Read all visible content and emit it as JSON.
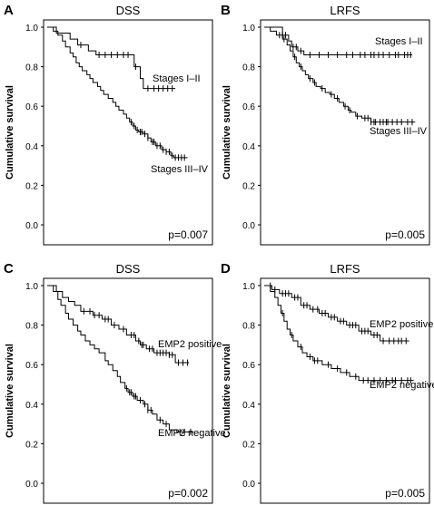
{
  "chart_data": [
    {
      "panel_letter": "A",
      "type": "line",
      "title": "DSS",
      "ylabel": "Cumulative survival",
      "y_ticks": [
        "0.0",
        "0.2",
        "0.4",
        "0.6",
        "0.8",
        "1.0"
      ],
      "ylim": [
        0,
        1
      ],
      "xlim": [
        0,
        100
      ],
      "p_value": "p=0.007",
      "grid": false,
      "series": [
        {
          "name": "Stages I–II",
          "steps": [
            [
              0,
              1.0
            ],
            [
              6,
              0.97
            ],
            [
              15,
              0.94
            ],
            [
              20,
              0.91
            ],
            [
              27,
              0.88
            ],
            [
              32,
              0.86
            ],
            [
              40,
              0.86
            ],
            [
              54,
              0.86
            ],
            [
              57,
              0.8
            ],
            [
              61,
              0.74
            ],
            [
              63,
              0.69
            ],
            [
              84,
              0.69
            ]
          ],
          "censor_x": [
            22,
            34,
            38,
            42,
            46,
            50,
            53,
            58,
            66,
            70,
            73,
            76,
            79,
            82
          ]
        },
        {
          "name": "Stages III–IV",
          "steps": [
            [
              0,
              1.0
            ],
            [
              4,
              0.98
            ],
            [
              7,
              0.96
            ],
            [
              10,
              0.93
            ],
            [
              12,
              0.9
            ],
            [
              15,
              0.87
            ],
            [
              17,
              0.85
            ],
            [
              19,
              0.82
            ],
            [
              21,
              0.8
            ],
            [
              23,
              0.78
            ],
            [
              26,
              0.76
            ],
            [
              28,
              0.74
            ],
            [
              30,
              0.72
            ],
            [
              33,
              0.7
            ],
            [
              35,
              0.68
            ],
            [
              37,
              0.66
            ],
            [
              40,
              0.64
            ],
            [
              43,
              0.62
            ],
            [
              45,
              0.6
            ],
            [
              47,
              0.58
            ],
            [
              50,
              0.56
            ],
            [
              52,
              0.54
            ],
            [
              54,
              0.52
            ],
            [
              56,
              0.5
            ],
            [
              58,
              0.48
            ],
            [
              60,
              0.47
            ],
            [
              63,
              0.46
            ],
            [
              66,
              0.44
            ],
            [
              68,
              0.42
            ],
            [
              71,
              0.4
            ],
            [
              75,
              0.38
            ],
            [
              78,
              0.37
            ],
            [
              81,
              0.35
            ],
            [
              83,
              0.34
            ],
            [
              92,
              0.34
            ]
          ],
          "censor_x": [
            55,
            57,
            59,
            61,
            62,
            64,
            66,
            69,
            70,
            72,
            74,
            76,
            78,
            80,
            82,
            84,
            86,
            88,
            90
          ]
        }
      ],
      "annotations": [
        "Stages I–II",
        "Stages III–IV"
      ]
    },
    {
      "panel_letter": "B",
      "type": "line",
      "title": "LRFS",
      "ylabel": "Cumulative survival",
      "y_ticks": [
        "0.0",
        "0.2",
        "0.4",
        "0.6",
        "0.8",
        "1.0"
      ],
      "ylim": [
        0,
        1
      ],
      "xlim": [
        0,
        100
      ],
      "p_value": "p=0.005",
      "grid": false,
      "series": [
        {
          "name": "Stages I–II",
          "steps": [
            [
              0,
              1.0
            ],
            [
              12,
              0.96
            ],
            [
              16,
              0.93
            ],
            [
              18,
              0.9
            ],
            [
              22,
              0.88
            ],
            [
              26,
              0.86
            ],
            [
              97,
              0.86
            ]
          ],
          "censor_x": [
            12,
            14,
            19,
            21,
            24,
            30,
            36,
            42,
            48,
            54,
            58,
            63,
            66,
            70,
            72,
            75,
            78,
            82,
            86,
            88,
            92,
            94,
            96
          ]
        },
        {
          "name": "Stages III–IV",
          "steps": [
            [
              0,
              1.0
            ],
            [
              4,
              0.98
            ],
            [
              8,
              0.96
            ],
            [
              12,
              0.94
            ],
            [
              15,
              0.91
            ],
            [
              17,
              0.88
            ],
            [
              19,
              0.85
            ],
            [
              21,
              0.82
            ],
            [
              23,
              0.8
            ],
            [
              25,
              0.78
            ],
            [
              27,
              0.76
            ],
            [
              29,
              0.74
            ],
            [
              32,
              0.72
            ],
            [
              34,
              0.7
            ],
            [
              37,
              0.69
            ],
            [
              40,
              0.67
            ],
            [
              43,
              0.66
            ],
            [
              46,
              0.64
            ],
            [
              49,
              0.62
            ],
            [
              52,
              0.6
            ],
            [
              55,
              0.58
            ],
            [
              57,
              0.57
            ],
            [
              60,
              0.55
            ],
            [
              64,
              0.54
            ],
            [
              70,
              0.52
            ],
            [
              99,
              0.52
            ]
          ],
          "censor_x": [
            10,
            13,
            20,
            24,
            30,
            33,
            38,
            44,
            48,
            53,
            56,
            61,
            66,
            68,
            70,
            72,
            73,
            76,
            78,
            80,
            81,
            84,
            87,
            90,
            94,
            97
          ]
        }
      ],
      "annotations": [
        "Stages I–II",
        "Stages III–IV"
      ]
    },
    {
      "panel_letter": "C",
      "type": "line",
      "title": "DSS",
      "ylabel": "Cumulative survival",
      "y_ticks": [
        "0.0",
        "0.2",
        "0.4",
        "0.6",
        "0.8",
        "1.0"
      ],
      "ylim": [
        0,
        1
      ],
      "xlim": [
        0,
        100
      ],
      "p_value": "p=0.002",
      "grid": false,
      "series": [
        {
          "name": "EMP2 positive",
          "steps": [
            [
              0,
              1.0
            ],
            [
              6,
              0.97
            ],
            [
              10,
              0.94
            ],
            [
              14,
              0.92
            ],
            [
              18,
              0.9
            ],
            [
              22,
              0.87
            ],
            [
              30,
              0.85
            ],
            [
              36,
              0.83
            ],
            [
              42,
              0.8
            ],
            [
              47,
              0.78
            ],
            [
              52,
              0.75
            ],
            [
              58,
              0.72
            ],
            [
              61,
              0.7
            ],
            [
              65,
              0.68
            ],
            [
              70,
              0.66
            ],
            [
              80,
              0.65
            ],
            [
              84,
              0.61
            ],
            [
              93,
              0.61
            ]
          ],
          "censor_x": [
            24,
            28,
            31,
            34,
            38,
            40,
            44,
            50,
            55,
            57,
            60,
            62,
            63,
            67,
            69,
            72,
            74,
            76,
            78,
            80,
            82,
            86,
            89,
            92
          ]
        },
        {
          "name": "EMP2 negative",
          "steps": [
            [
              0,
              1.0
            ],
            [
              4,
              0.97
            ],
            [
              7,
              0.93
            ],
            [
              9,
              0.9
            ],
            [
              12,
              0.86
            ],
            [
              14,
              0.83
            ],
            [
              17,
              0.8
            ],
            [
              20,
              0.77
            ],
            [
              22,
              0.75
            ],
            [
              25,
              0.72
            ],
            [
              28,
              0.7
            ],
            [
              31,
              0.68
            ],
            [
              34,
              0.66
            ],
            [
              38,
              0.62
            ],
            [
              40,
              0.6
            ],
            [
              43,
              0.57
            ],
            [
              46,
              0.54
            ],
            [
              48,
              0.51
            ],
            [
              51,
              0.48
            ],
            [
              53,
              0.46
            ],
            [
              56,
              0.44
            ],
            [
              59,
              0.42
            ],
            [
              63,
              0.4
            ],
            [
              66,
              0.37
            ],
            [
              69,
              0.35
            ],
            [
              72,
              0.32
            ],
            [
              76,
              0.3
            ],
            [
              80,
              0.27
            ],
            [
              85,
              0.26
            ],
            [
              96,
              0.26
            ]
          ],
          "censor_x": [
            52,
            54,
            55,
            57,
            58,
            61,
            64,
            66,
            68,
            74,
            78,
            87,
            90,
            94
          ]
        }
      ],
      "annotations": [
        "EMP2 positive",
        "EMP2 negative"
      ]
    },
    {
      "panel_letter": "D",
      "type": "line",
      "title": "LRFS",
      "ylabel": "Cumulative survival",
      "y_ticks": [
        "0.0",
        "0.2",
        "0.4",
        "0.6",
        "0.8",
        "1.0"
      ],
      "ylim": [
        0,
        1
      ],
      "xlim": [
        0,
        100
      ],
      "p_value": "p=0.005",
      "grid": false,
      "series": [
        {
          "name": "EMP2 positive",
          "steps": [
            [
              0,
              1.0
            ],
            [
              5,
              0.98
            ],
            [
              10,
              0.96
            ],
            [
              18,
              0.94
            ],
            [
              24,
              0.9
            ],
            [
              30,
              0.88
            ],
            [
              36,
              0.86
            ],
            [
              42,
              0.84
            ],
            [
              48,
              0.82
            ],
            [
              54,
              0.8
            ],
            [
              62,
              0.77
            ],
            [
              70,
              0.75
            ],
            [
              76,
              0.72
            ],
            [
              95,
              0.72
            ]
          ],
          "censor_x": [
            4,
            7,
            12,
            14,
            16,
            20,
            22,
            26,
            28,
            32,
            35,
            38,
            40,
            44,
            46,
            50,
            52,
            56,
            58,
            60,
            64,
            66,
            68,
            72,
            74,
            78,
            82,
            85,
            88,
            90,
            93
          ]
        },
        {
          "name": "EMP2 negative",
          "steps": [
            [
              0,
              1.0
            ],
            [
              4,
              0.97
            ],
            [
              7,
              0.94
            ],
            [
              9,
              0.9
            ],
            [
              11,
              0.86
            ],
            [
              13,
              0.82
            ],
            [
              15,
              0.78
            ],
            [
              17,
              0.75
            ],
            [
              19,
              0.72
            ],
            [
              22,
              0.69
            ],
            [
              25,
              0.66
            ],
            [
              28,
              0.64
            ],
            [
              32,
              0.62
            ],
            [
              38,
              0.6
            ],
            [
              44,
              0.58
            ],
            [
              50,
              0.56
            ],
            [
              56,
              0.54
            ],
            [
              62,
              0.52
            ],
            [
              98,
              0.52
            ]
          ],
          "censor_x": [
            12,
            18,
            24,
            30,
            33,
            35,
            42,
            48,
            54,
            60,
            65,
            68,
            72,
            76,
            80,
            84,
            86,
            90,
            94,
            96
          ]
        }
      ],
      "annotations": [
        "EMP2 positive",
        "EMP2 negative"
      ]
    }
  ]
}
